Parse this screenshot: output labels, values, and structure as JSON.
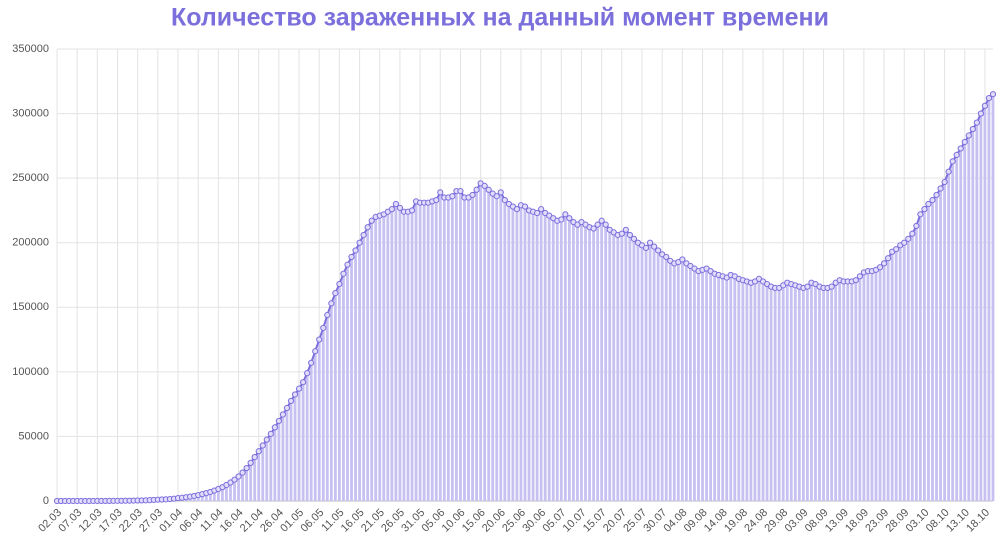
{
  "chart_data": {
    "type": "bar-line",
    "title": "Количество зараженных на данный момент времени",
    "color": "#7b6fdc",
    "bar_color": "#c7c1f2",
    "grid": true,
    "ylim": [
      0,
      350000
    ],
    "yticks": [
      0,
      50000,
      100000,
      150000,
      200000,
      250000,
      300000,
      350000
    ],
    "categories": [
      "02.03",
      null,
      null,
      null,
      null,
      "07.03",
      null,
      null,
      null,
      null,
      "12.03",
      null,
      null,
      null,
      null,
      "17.03",
      null,
      null,
      null,
      null,
      "22.03",
      null,
      null,
      null,
      null,
      "27.03",
      null,
      null,
      null,
      null,
      "01.04",
      null,
      null,
      null,
      null,
      "06.04",
      null,
      null,
      null,
      null,
      "11.04",
      null,
      null,
      null,
      null,
      "16.04",
      null,
      null,
      null,
      null,
      "21.04",
      null,
      null,
      null,
      null,
      "26.04",
      null,
      null,
      null,
      null,
      "01.05",
      null,
      null,
      null,
      null,
      "06.05",
      null,
      null,
      null,
      null,
      "11.05",
      null,
      null,
      null,
      null,
      "16.05",
      null,
      null,
      null,
      null,
      "21.05",
      null,
      null,
      null,
      null,
      "26.05",
      null,
      null,
      null,
      null,
      "31.05",
      null,
      null,
      null,
      null,
      "05.06",
      null,
      null,
      null,
      null,
      "10.06",
      null,
      null,
      null,
      null,
      "15.06",
      null,
      null,
      null,
      null,
      "20.06",
      null,
      null,
      null,
      null,
      "25.06",
      null,
      null,
      null,
      null,
      "30.06",
      null,
      null,
      null,
      null,
      "05.07",
      null,
      null,
      null,
      null,
      "10.07",
      null,
      null,
      null,
      null,
      "15.07",
      null,
      null,
      null,
      null,
      "20.07",
      null,
      null,
      null,
      null,
      "25.07",
      null,
      null,
      null,
      null,
      "30.07",
      null,
      null,
      null,
      null,
      "04.08",
      null,
      null,
      null,
      null,
      "09.08",
      null,
      null,
      null,
      null,
      "14.08",
      null,
      null,
      null,
      null,
      "19.08",
      null,
      null,
      null,
      null,
      "24.08",
      null,
      null,
      null,
      null,
      "29.08",
      null,
      null,
      null,
      null,
      "03.09",
      null,
      null,
      null,
      null,
      "08.09",
      null,
      null,
      null,
      null,
      "13.09",
      null,
      null,
      null,
      null,
      "18.09",
      null,
      null,
      null,
      null,
      "23.09",
      null,
      null,
      null,
      null,
      "28.09",
      null,
      null,
      null,
      null,
      "03.10",
      null,
      null,
      null,
      null,
      "08.10",
      null,
      null,
      null,
      null,
      "13.10",
      null,
      null,
      null,
      null,
      "18.10",
      null,
      null
    ],
    "values": [
      3,
      3,
      4,
      4,
      7,
      10,
      13,
      17,
      28,
      34,
      45,
      59,
      63,
      90,
      114,
      131,
      147,
      199,
      253,
      306,
      367,
      438,
      495,
      658,
      840,
      1014,
      1164,
      1264,
      1500,
      1800,
      2200,
      2500,
      2900,
      3400,
      3900,
      4600,
      5300,
      6100,
      7000,
      8100,
      9300,
      10700,
      12400,
      14300,
      16500,
      19000,
      22000,
      25500,
      29500,
      34000,
      38500,
      43000,
      47500,
      52000,
      57000,
      62000,
      67000,
      72000,
      77500,
      82500,
      87000,
      92000,
      99000,
      107000,
      116000,
      125000,
      134000,
      144000,
      153000,
      161000,
      168000,
      176000,
      183000,
      189000,
      194000,
      200000,
      206000,
      212000,
      217000,
      220000,
      221000,
      222000,
      224000,
      226000,
      230000,
      227000,
      224000,
      224000,
      225000,
      232000,
      231000,
      231000,
      231000,
      232000,
      233000,
      239000,
      235000,
      235000,
      236000,
      240000,
      240000,
      235000,
      235000,
      237000,
      241000,
      246000,
      244000,
      241000,
      238000,
      236000,
      239000,
      233000,
      230000,
      228000,
      226000,
      229000,
      228000,
      225000,
      224000,
      223000,
      226000,
      223000,
      221000,
      219000,
      217000,
      218000,
      222000,
      219000,
      216000,
      214000,
      216000,
      214000,
      212000,
      211000,
      214000,
      217000,
      214000,
      210000,
      208000,
      206000,
      207000,
      210000,
      206000,
      203000,
      200000,
      198000,
      196000,
      200000,
      197000,
      194000,
      191000,
      189000,
      186000,
      184000,
      185000,
      187000,
      184000,
      182000,
      180000,
      178000,
      179000,
      180000,
      178000,
      176000,
      175000,
      174000,
      173000,
      175000,
      174000,
      172000,
      171000,
      170000,
      169000,
      170000,
      172000,
      170000,
      168000,
      166000,
      165000,
      165000,
      167000,
      169000,
      168000,
      167000,
      166000,
      165000,
      166000,
      169000,
      168000,
      166000,
      165000,
      165000,
      166000,
      169000,
      171000,
      170000,
      170000,
      170000,
      171000,
      174000,
      177000,
      178000,
      178000,
      179000,
      181000,
      184000,
      188000,
      193000,
      195000,
      198000,
      200000,
      203000,
      207000,
      213000,
      222000,
      226000,
      230000,
      233000,
      237000,
      242000,
      247000,
      255000,
      263000,
      268000,
      273000,
      278000,
      283000,
      288000,
      293000,
      300000,
      306000,
      312000,
      315000
    ]
  }
}
